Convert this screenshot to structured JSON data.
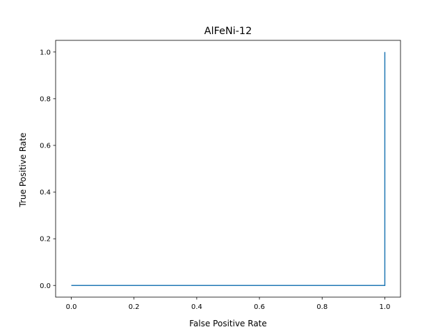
{
  "chart_data": {
    "type": "line",
    "title": "AlFeNi-12",
    "xlabel": "False Positive Rate",
    "ylabel": "True Positive Rate",
    "xlim": [
      -0.05,
      1.05
    ],
    "ylim": [
      -0.05,
      1.05
    ],
    "xticks": [
      0.0,
      0.2,
      0.4,
      0.6,
      0.8,
      1.0
    ],
    "yticks": [
      0.0,
      0.2,
      0.4,
      0.6,
      0.8,
      1.0
    ],
    "xtick_labels": [
      "0.0",
      "0.2",
      "0.4",
      "0.6",
      "0.8",
      "1.0"
    ],
    "ytick_labels": [
      "0.0",
      "0.2",
      "0.4",
      "0.6",
      "0.8",
      "1.0"
    ],
    "grid": false,
    "series": [
      {
        "color": "#1f77b4",
        "x": [
          0.0,
          1.0,
          1.0
        ],
        "y": [
          0.0,
          0.0,
          1.0
        ]
      }
    ]
  }
}
